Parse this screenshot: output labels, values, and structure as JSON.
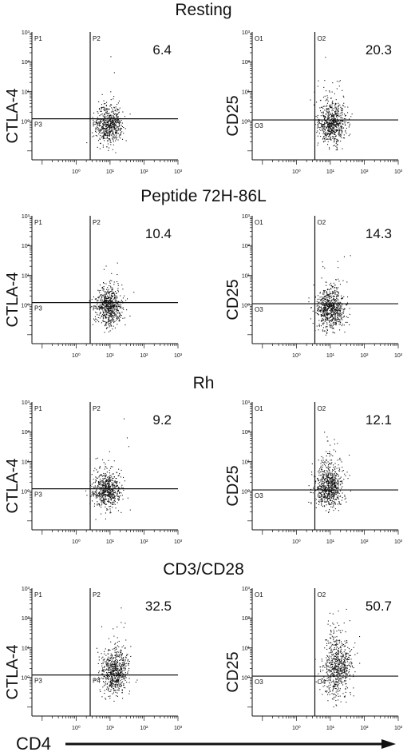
{
  "figure": {
    "x_axis_label": "CD4",
    "colors": {
      "ink": "#111111",
      "background": "#ffffff"
    },
    "tick_labels": [
      "10⁰",
      "10¹",
      "10²",
      "10³"
    ],
    "y_tick_labels": [
      "10⁰",
      "10¹",
      "10²",
      "10³"
    ]
  },
  "chart_data": [
    {
      "type": "scatter",
      "panel_title": "Resting",
      "xlabel": "",
      "ylabel": "CTLA-4",
      "xscale": "log",
      "yscale": "log",
      "xlim": [
        0.05,
        1000
      ],
      "ylim": [
        0.05,
        1000
      ],
      "gate": {
        "x": 2.6,
        "y": 1.2
      },
      "quadrants": [
        "P1",
        "P2",
        "P3",
        "P4"
      ],
      "percent_label": "6.4",
      "cloud": {
        "center": [
          9,
          0.7
        ],
        "spread_log": [
          0.2,
          0.3
        ],
        "upper_spread": 0.3,
        "count": 600
      }
    },
    {
      "type": "scatter",
      "panel_title": "Resting",
      "xlabel": "",
      "ylabel": "CD25",
      "xscale": "log",
      "yscale": "log",
      "xlim": [
        0.05,
        1000
      ],
      "ylim": [
        0.05,
        1000
      ],
      "gate": {
        "x": 3.5,
        "y": 1.1
      },
      "quadrants": [
        "O1",
        "O2",
        "O3",
        "O4"
      ],
      "percent_label": "20.3",
      "cloud": {
        "center": [
          11,
          0.75
        ],
        "spread_log": [
          0.2,
          0.32
        ],
        "upper_spread": 0.5,
        "count": 650
      }
    },
    {
      "type": "scatter",
      "panel_title": "Peptide 72H-86L",
      "xlabel": "",
      "ylabel": "CTLA-4",
      "xscale": "log",
      "yscale": "log",
      "xlim": [
        0.05,
        1000
      ],
      "ylim": [
        0.05,
        1000
      ],
      "gate": {
        "x": 2.6,
        "y": 1.2
      },
      "quadrants": [
        "P1",
        "P2",
        "P3",
        "P4"
      ],
      "percent_label": "10.4",
      "cloud": {
        "center": [
          9,
          0.8
        ],
        "spread_log": [
          0.2,
          0.3
        ],
        "upper_spread": 0.35,
        "count": 650
      }
    },
    {
      "type": "scatter",
      "panel_title": "Peptide 72H-86L",
      "xlabel": "",
      "ylabel": "CD25",
      "xscale": "log",
      "yscale": "log",
      "xlim": [
        0.05,
        1000
      ],
      "ylim": [
        0.05,
        1000
      ],
      "gate": {
        "x": 3.5,
        "y": 1.1
      },
      "quadrants": [
        "O1",
        "O2",
        "O3",
        "O4"
      ],
      "percent_label": "14.3",
      "cloud": {
        "center": [
          10,
          0.7
        ],
        "spread_log": [
          0.2,
          0.32
        ],
        "upper_spread": 0.45,
        "count": 700
      }
    },
    {
      "type": "scatter",
      "panel_title": "Rh",
      "xlabel": "",
      "ylabel": "CTLA-4",
      "xscale": "log",
      "yscale": "log",
      "xlim": [
        0.05,
        1000
      ],
      "ylim": [
        0.05,
        1000
      ],
      "gate": {
        "x": 2.6,
        "y": 1.2
      },
      "quadrants": [
        "P1",
        "P2",
        "P3",
        "P4"
      ],
      "percent_label": "9.2",
      "cloud": {
        "center": [
          8,
          1.0
        ],
        "spread_log": [
          0.2,
          0.3
        ],
        "upper_spread": 0.35,
        "count": 600
      }
    },
    {
      "type": "scatter",
      "panel_title": "Rh",
      "xlabel": "",
      "ylabel": "CD25",
      "xscale": "log",
      "yscale": "log",
      "xlim": [
        0.05,
        1000
      ],
      "ylim": [
        0.05,
        1000
      ],
      "gate": {
        "x": 3.5,
        "y": 1.1
      },
      "quadrants": [
        "O1",
        "O2",
        "O3",
        "O4"
      ],
      "percent_label": "12.1",
      "cloud": {
        "center": [
          9,
          1.2
        ],
        "spread_log": [
          0.2,
          0.34
        ],
        "upper_spread": 0.45,
        "count": 700
      }
    },
    {
      "type": "scatter",
      "panel_title": "CD3/CD28",
      "xlabel": "",
      "ylabel": "CTLA-4",
      "xscale": "log",
      "yscale": "log",
      "xlim": [
        0.05,
        1000
      ],
      "ylim": [
        0.05,
        1000
      ],
      "gate": {
        "x": 2.6,
        "y": 1.2
      },
      "quadrants": [
        "P1",
        "P2",
        "P3",
        "P4"
      ],
      "percent_label": "32.5",
      "cloud": {
        "center": [
          13,
          1.3
        ],
        "spread_log": [
          0.2,
          0.36
        ],
        "upper_spread": 0.55,
        "count": 650
      }
    },
    {
      "type": "scatter",
      "panel_title": "CD3/CD28",
      "xlabel": "",
      "ylabel": "CD25",
      "xscale": "log",
      "yscale": "log",
      "xlim": [
        0.05,
        1000
      ],
      "ylim": [
        0.05,
        1000
      ],
      "gate": {
        "x": 3.5,
        "y": 1.1
      },
      "quadrants": [
        "O1",
        "O2",
        "O3",
        "O4"
      ],
      "percent_label": "50.7",
      "cloud": {
        "center": [
          16,
          1.8
        ],
        "spread_log": [
          0.22,
          0.45
        ],
        "upper_spread": 0.6,
        "count": 650
      }
    }
  ]
}
